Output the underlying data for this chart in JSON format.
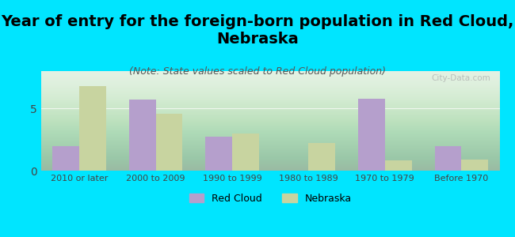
{
  "title": "Year of entry for the foreign-born population in Red Cloud,\nNebraska",
  "subtitle": "(Note: State values scaled to Red Cloud population)",
  "categories": [
    "2010 or later",
    "2000 to 2009",
    "1990 to 1999",
    "1980 to 1989",
    "1970 to 1979",
    "Before 1970"
  ],
  "red_cloud_values": [
    2,
    5.7,
    2.7,
    0,
    5.8,
    2
  ],
  "nebraska_values": [
    6.8,
    4.6,
    3.0,
    2.2,
    0.8,
    0.9
  ],
  "red_cloud_color": "#b59fcc",
  "nebraska_color": "#c8d4a0",
  "background_outer": "#00e5ff",
  "background_plot": "#e8f5e8",
  "background_plot_gradient_top": "#d4edda",
  "ylim": [
    0,
    8
  ],
  "yticks": [
    0,
    5
  ],
  "bar_width": 0.35,
  "title_fontsize": 14,
  "subtitle_fontsize": 9,
  "legend_labels": [
    "Red Cloud",
    "Nebraska"
  ],
  "watermark": "City-Data.com"
}
